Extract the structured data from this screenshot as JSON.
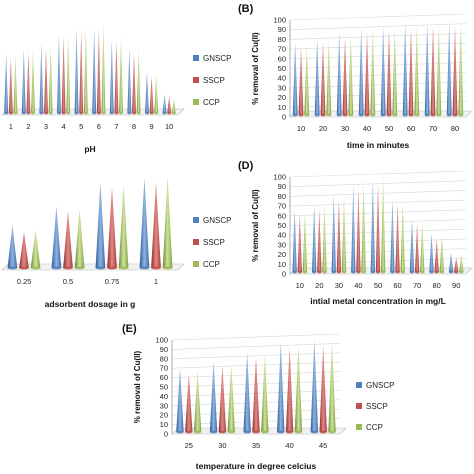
{
  "series_names": [
    "GNSCP",
    "SSCP",
    "CCP"
  ],
  "colors": {
    "GNSCP": "#4f81bd",
    "SSCP": "#c0504d",
    "CCP": "#9bbb59"
  },
  "chart_data": [
    {
      "type": "bar",
      "panel_label": "",
      "xlabel": "pH",
      "ylabel": "",
      "ylim": [
        0,
        100
      ],
      "yticks": [],
      "grid": false,
      "legend": "right",
      "categories": [
        "1",
        "2",
        "3",
        "4",
        "5",
        "6",
        "7",
        "8",
        "9",
        "10"
      ],
      "series": [
        {
          "name": "GNSCP",
          "values": [
            65,
            70,
            75,
            85,
            90,
            92,
            80,
            70,
            45,
            20
          ]
        },
        {
          "name": "SSCP",
          "values": [
            60,
            65,
            70,
            82,
            88,
            90,
            78,
            65,
            40,
            18
          ]
        },
        {
          "name": "CCP",
          "values": [
            62,
            68,
            73,
            84,
            92,
            95,
            82,
            68,
            42,
            15
          ]
        }
      ]
    },
    {
      "type": "bar",
      "panel_label": "(B)",
      "xlabel": "time in minutes",
      "ylabel": "% removal of Cu(II)",
      "ylim": [
        0,
        100
      ],
      "yticks": [
        "0",
        "10",
        "20",
        "30",
        "40",
        "50",
        "60",
        "70",
        "80",
        "90",
        "100"
      ],
      "grid": true,
      "legend": "none",
      "categories": [
        "10",
        "20",
        "30",
        "40",
        "50",
        "60",
        "70",
        "80"
      ],
      "series": [
        {
          "name": "GNSCP",
          "values": [
            75,
            80,
            85,
            90,
            92,
            95,
            95,
            95
          ]
        },
        {
          "name": "SSCP",
          "values": [
            70,
            75,
            80,
            85,
            88,
            90,
            92,
            92
          ]
        },
        {
          "name": "CCP",
          "values": [
            72,
            78,
            82,
            88,
            90,
            93,
            94,
            95
          ]
        }
      ]
    },
    {
      "type": "bar",
      "panel_label": "",
      "xlabel": "adsorbent dosage in g",
      "ylabel": "",
      "ylim": [
        0,
        100
      ],
      "yticks": [],
      "grid": false,
      "legend": "right",
      "categories": [
        "0.25",
        "0.5",
        "0.75",
        "1"
      ],
      "series": [
        {
          "name": "GNSCP",
          "values": [
            45,
            65,
            90,
            95
          ]
        },
        {
          "name": "SSCP",
          "values": [
            38,
            60,
            85,
            90
          ]
        },
        {
          "name": "CCP",
          "values": [
            40,
            62,
            88,
            96
          ]
        }
      ]
    },
    {
      "type": "bar",
      "panel_label": "(D)",
      "xlabel": "intial metal concentration in mg/L",
      "ylabel": "% removal of Cu(II)",
      "ylim": [
        0,
        100
      ],
      "yticks": [
        "0",
        "10",
        "20",
        "30",
        "40",
        "50",
        "60",
        "70",
        "80",
        "90",
        "100"
      ],
      "grid": true,
      "legend": "none",
      "categories": [
        "10",
        "20",
        "30",
        "40",
        "50",
        "60",
        "70",
        "80",
        "90"
      ],
      "series": [
        {
          "name": "GNSCP",
          "values": [
            65,
            70,
            80,
            90,
            95,
            75,
            55,
            40,
            20
          ]
        },
        {
          "name": "SSCP",
          "values": [
            60,
            65,
            75,
            85,
            90,
            70,
            50,
            35,
            15
          ]
        },
        {
          "name": "CCP",
          "values": [
            62,
            68,
            78,
            92,
            98,
            72,
            52,
            38,
            18
          ]
        }
      ]
    },
    {
      "type": "bar",
      "panel_label": "(E)",
      "xlabel": "temperature in degree celcius",
      "ylabel": "% removal of Cu(II)",
      "ylim": [
        0,
        100
      ],
      "yticks": [
        "0",
        "10",
        "20",
        "30",
        "40",
        "50",
        "60",
        "70",
        "80",
        "90",
        "100"
      ],
      "grid": true,
      "legend": "right",
      "categories": [
        "25",
        "30",
        "35",
        "40",
        "45"
      ],
      "series": [
        {
          "name": "GNSCP",
          "values": [
            68,
            75,
            85,
            95,
            98
          ]
        },
        {
          "name": "SSCP",
          "values": [
            62,
            70,
            80,
            90,
            92
          ]
        },
        {
          "name": "CCP",
          "values": [
            65,
            72,
            82,
            92,
            95
          ]
        }
      ]
    }
  ]
}
